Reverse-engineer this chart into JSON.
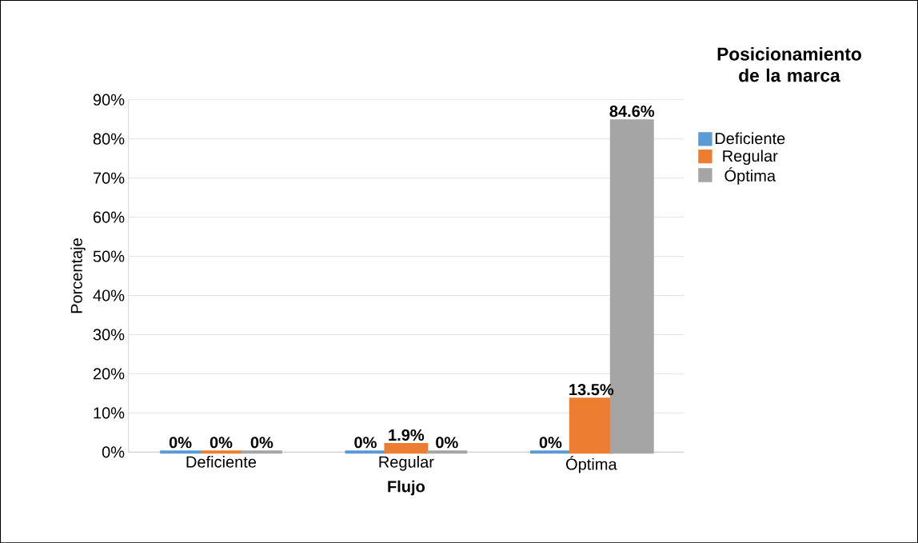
{
  "chart_data": {
    "type": "bar",
    "xlabel": "Flujo",
    "ylabel": "Porcentaje",
    "legend_title": "Posicionamiento de la marca",
    "categories": [
      "Deficiente",
      "Regular",
      "Óptima"
    ],
    "series": [
      {
        "name": "Deficiente",
        "color": "#5b9bd5",
        "values": [
          0,
          0,
          0
        ],
        "value_labels": [
          "0%",
          "0%",
          "0%"
        ]
      },
      {
        "name": "Regular",
        "color": "#ed7d31",
        "values": [
          0,
          1.9,
          13.5
        ],
        "value_labels": [
          "0%",
          "1.9%",
          "13.5%"
        ]
      },
      {
        "name": "Óptima",
        "color": "#a5a5a5",
        "values": [
          0,
          0,
          84.6
        ],
        "value_labels": [
          "0%",
          "0%",
          "84.6%"
        ]
      }
    ],
    "ylim": [
      0,
      90
    ],
    "yticks": [
      {
        "value": 0,
        "label": "0%"
      },
      {
        "value": 10,
        "label": "10%"
      },
      {
        "value": 20,
        "label": "20%"
      },
      {
        "value": 30,
        "label": "30%"
      },
      {
        "value": 40,
        "label": "40%"
      },
      {
        "value": 50,
        "label": "50%"
      },
      {
        "value": 60,
        "label": "60%"
      },
      {
        "value": 70,
        "label": "70%"
      },
      {
        "value": 80,
        "label": "80%"
      },
      {
        "value": 90,
        "label": "90%"
      }
    ],
    "grid": "y",
    "legend": "right"
  }
}
